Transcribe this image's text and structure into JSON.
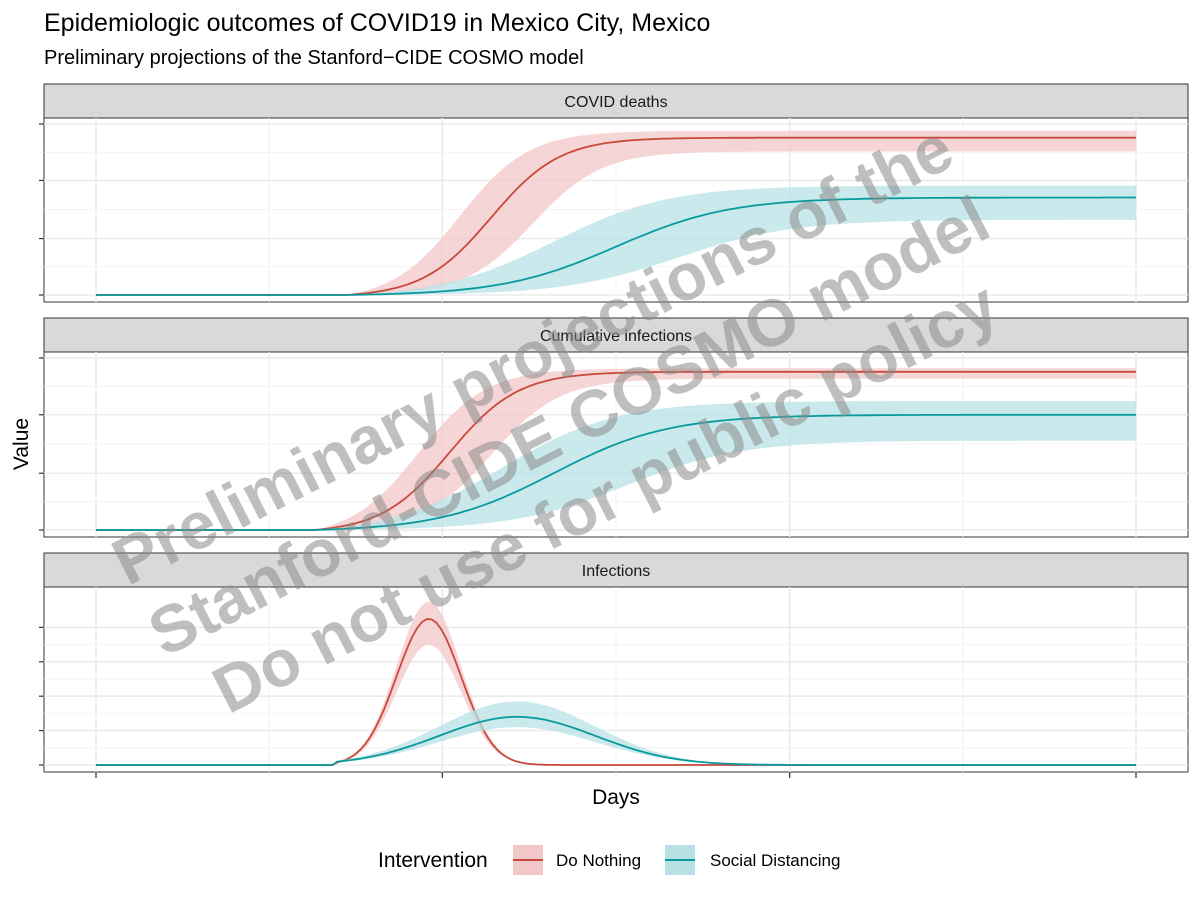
{
  "title": "Epidemiologic outcomes of COVID19 in Mexico City, Mexico",
  "subtitle": "Preliminary projections of the Stanford−CIDE COSMO model",
  "watermark": {
    "line1": "Preliminary projections of the",
    "line2": "Stanford-CIDE COSMO model",
    "line3": "Do not use for public policy"
  },
  "colors": {
    "do_nothing_line": "#c9493b",
    "do_nothing_band": "#f2c7c7",
    "social_distancing_line": "#0a9a9d",
    "social_distancing_band": "#b7e2e5",
    "strip_fill": "#d9d9d9",
    "grid": "#ebebeb"
  },
  "chart_data": {
    "type": "area",
    "xlabel": "Days",
    "ylabel": "Value",
    "xlim": [
      0,
      100
    ],
    "x_ticks": [
      0,
      33.3,
      66.7,
      100
    ],
    "tick_labels_visible": false,
    "legend": {
      "title": "Intervention",
      "placement": "bottom",
      "entries": [
        "Do Nothing",
        "Social Distancing"
      ]
    },
    "panels": [
      {
        "strip": "COVID deaths",
        "ylim": [
          0,
          1
        ],
        "y_ticks": [
          0,
          0.33,
          0.67,
          1.0
        ],
        "series": [
          {
            "name": "Do Nothing",
            "shape": "cumulative",
            "center": 38,
            "width": 3.3,
            "peak": 0.92,
            "lower": 0.84,
            "upper": 0.96,
            "start": 24,
            "lower_center": 42,
            "upper_center": 35
          },
          {
            "name": "Social Distancing",
            "shape": "cumulative",
            "center": 50,
            "width": 5.5,
            "peak": 0.57,
            "lower": 0.44,
            "upper": 0.64,
            "start": 24,
            "lower_center": 56,
            "upper_center": 44
          }
        ]
      },
      {
        "strip": "Cumulative infections",
        "ylim": [
          0,
          1
        ],
        "y_ticks": [
          0,
          0.33,
          0.67,
          1.0
        ],
        "series": [
          {
            "name": "Do Nothing",
            "shape": "cumulative",
            "center": 34,
            "width": 3.3,
            "peak": 0.92,
            "lower": 0.88,
            "upper": 0.94,
            "start": 21,
            "lower_center": 38,
            "upper_center": 31
          },
          {
            "name": "Social Distancing",
            "shape": "cumulative",
            "center": 44,
            "width": 5.5,
            "peak": 0.67,
            "lower": 0.52,
            "upper": 0.75,
            "start": 21,
            "lower_center": 51,
            "upper_center": 39
          }
        ]
      },
      {
        "strip": "Infections",
        "ylim": [
          0,
          1
        ],
        "y_ticks": [
          0,
          0.2,
          0.4,
          0.6,
          0.8
        ],
        "series": [
          {
            "name": "Do Nothing",
            "shape": "peak",
            "center": 32,
            "width": 3.1,
            "peak": 0.85,
            "lower": 0.7,
            "upper": 0.95,
            "start": 23,
            "end": 42
          },
          {
            "name": "Social Distancing",
            "shape": "peak",
            "center": 40.5,
            "width": 7.5,
            "peak": 0.28,
            "lower": 0.22,
            "upper": 0.37,
            "start": 23,
            "end": 62
          }
        ]
      }
    ]
  }
}
